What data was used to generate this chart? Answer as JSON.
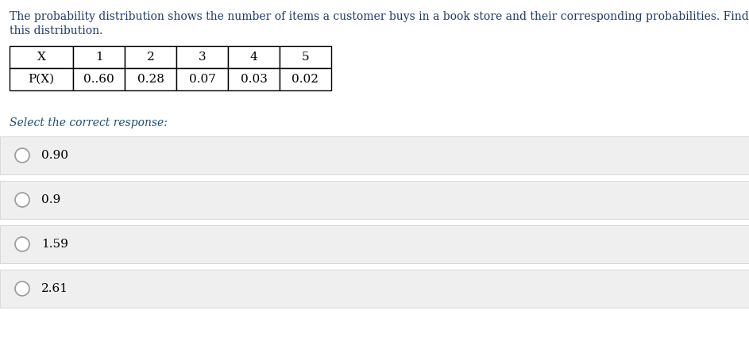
{
  "title_line1": "The probability distribution shows the number of items a customer buys in a book store and their corresponding probabilities. Find the mean of",
  "title_line2": "this distribution.",
  "title_color": "#1a3a6b",
  "title_fontsize": 10.0,
  "table_headers": [
    "X",
    "1",
    "2",
    "3",
    "4",
    "5"
  ],
  "table_row_label": "P(X)",
  "table_values": [
    "0..60",
    "0.28",
    "0.07",
    "0.03",
    "0.02"
  ],
  "select_label": "Select the correct response:",
  "select_color": "#1a5276",
  "options": [
    "0.90",
    "0.9",
    "1.59",
    "2.61"
  ],
  "bg_color": "#ffffff",
  "option_bg_color": "#efefef",
  "option_border_color": "#cccccc",
  "text_color": "#000000",
  "radio_color": "#999999"
}
